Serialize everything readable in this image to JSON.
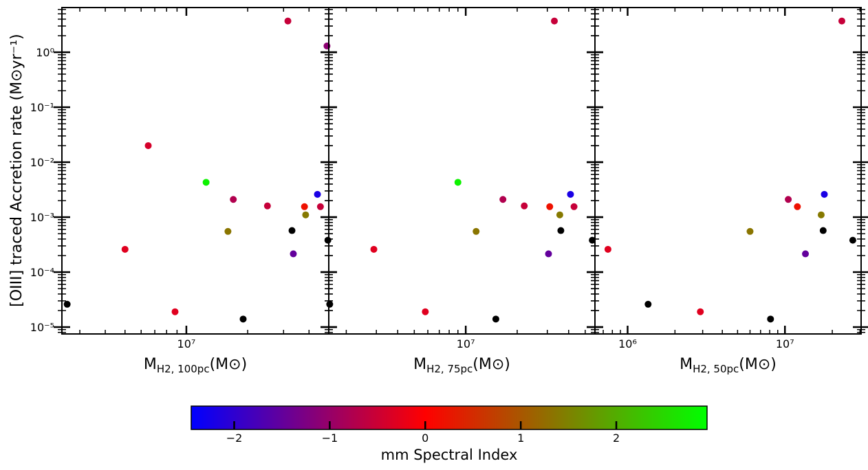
{
  "chart_data": {
    "type": "scatter",
    "shared_ylabel": "[OIII] traced Accretion rate (M⊙yr⁻¹)",
    "y_scale": "log",
    "ylim": [
      7.5e-06,
      6.5
    ],
    "y_tick_labels": [
      "10⁻⁵",
      "10⁻⁴",
      "10⁻³",
      "10⁻²",
      "10⁻¹",
      "10⁰"
    ],
    "y_tick_values": [
      1e-05,
      0.0001,
      0.001,
      0.01,
      0.1,
      1
    ],
    "colorbar": {
      "label": "mm Spectral Index",
      "range": [
        -2.45,
        2.95
      ],
      "ticks": [
        -2,
        -1,
        0,
        1,
        2
      ],
      "tick_labels": [
        "−2",
        "−1",
        "0",
        "1",
        "2"
      ],
      "colors": [
        "#0000ff",
        "#ff0000",
        "#00ff00"
      ],
      "no_data_color": "#000000"
    },
    "panels": [
      {
        "xlabel_main": "M",
        "xlabel_sub": "H2, 100pc",
        "xlabel_tail": "(M⊙)",
        "x_scale": "log",
        "xlim": [
          2450000.0,
          50000000.0
        ],
        "x_tick_labels": [
          "10⁷"
        ],
        "x_tick_values": [
          10000000.0
        ],
        "points": [
          {
            "x": 2600000.0,
            "y": 2.6e-05,
            "alpha": null
          },
          {
            "x": 5000000.0,
            "y": 0.00026,
            "alpha": -0.3
          },
          {
            "x": 6500000.0,
            "y": 0.02,
            "alpha": -0.4
          },
          {
            "x": 8800000.0,
            "y": 1.9e-05,
            "alpha": -0.3
          },
          {
            "x": 12500000.0,
            "y": 0.0043,
            "alpha": 2.8
          },
          {
            "x": 16000000.0,
            "y": 0.00055,
            "alpha": 1.35
          },
          {
            "x": 17000000.0,
            "y": 0.0021,
            "alpha": -0.75
          },
          {
            "x": 19000000.0,
            "y": 1.4e-05,
            "alpha": null
          },
          {
            "x": 25000000.0,
            "y": 0.0016,
            "alpha": -0.55
          },
          {
            "x": 31500000.0,
            "y": 3.7,
            "alpha": -0.55
          },
          {
            "x": 33000000.0,
            "y": 0.00057,
            "alpha": null
          },
          {
            "x": 33500000.0,
            "y": 0.000215,
            "alpha": -1.5
          },
          {
            "x": 38000000.0,
            "y": 0.00155,
            "alpha": 0.2
          },
          {
            "x": 38500000.0,
            "y": 0.0011,
            "alpha": 1.4
          },
          {
            "x": 44000000.0,
            "y": 0.0026,
            "alpha": -2.2
          },
          {
            "x": 45500000.0,
            "y": 0.00155,
            "alpha": -0.55
          },
          {
            "x": 49000000.0,
            "y": 1.3,
            "alpha": -1.1
          },
          {
            "x": 49500000.0,
            "y": 0.00038,
            "alpha": null
          }
        ]
      },
      {
        "xlabel_main": "M",
        "xlabel_sub": "H2, 75pc",
        "xlabel_tail": "(M⊙)",
        "x_scale": "log",
        "xlim": [
          1580000.0,
          57000000.0
        ],
        "x_tick_labels": [
          "10⁷"
        ],
        "x_tick_values": [
          10000000.0
        ],
        "points": [
          {
            "x": 1600000.0,
            "y": 2.6e-05,
            "alpha": null
          },
          {
            "x": 2900000.0,
            "y": 0.00026,
            "alpha": -0.3
          },
          {
            "x": 5800000.0,
            "y": 1.9e-05,
            "alpha": -0.3
          },
          {
            "x": 9000000.0,
            "y": 0.0043,
            "alpha": 2.8
          },
          {
            "x": 11500000.0,
            "y": 0.00055,
            "alpha": 1.35
          },
          {
            "x": 15000000.0,
            "y": 1.4e-05,
            "alpha": null
          },
          {
            "x": 16500000.0,
            "y": 0.0021,
            "alpha": -0.75
          },
          {
            "x": 22000000.0,
            "y": 0.0016,
            "alpha": -0.55
          },
          {
            "x": 30500000.0,
            "y": 0.000215,
            "alpha": -1.5
          },
          {
            "x": 31000000.0,
            "y": 0.00155,
            "alpha": 0.2
          },
          {
            "x": 33000000.0,
            "y": 3.7,
            "alpha": -0.55
          },
          {
            "x": 35500000.0,
            "y": 0.0011,
            "alpha": 1.4
          },
          {
            "x": 36000000.0,
            "y": 0.00057,
            "alpha": null
          },
          {
            "x": 41000000.0,
            "y": 0.0026,
            "alpha": -2.2
          },
          {
            "x": 43000000.0,
            "y": 0.00155,
            "alpha": -0.55
          },
          {
            "x": 55000000.0,
            "y": 0.00038,
            "alpha": null
          }
        ]
      },
      {
        "xlabel_main": "M",
        "xlabel_sub": "H2, 50pc",
        "xlabel_tail": "(M⊙)",
        "x_scale": "log",
        "xlim": [
          620000.0,
          30500000.0
        ],
        "x_tick_labels": [
          "10⁶",
          "10⁷"
        ],
        "x_tick_values": [
          1000000.0,
          10000000.0
        ],
        "points": [
          {
            "x": 750000.0,
            "y": 0.00026,
            "alpha": -0.3
          },
          {
            "x": 1350000.0,
            "y": 2.6e-05,
            "alpha": null
          },
          {
            "x": 2900000.0,
            "y": 1.9e-05,
            "alpha": -0.3
          },
          {
            "x": 6000000.0,
            "y": 0.00055,
            "alpha": 1.35
          },
          {
            "x": 8100000.0,
            "y": 1.4e-05,
            "alpha": null
          },
          {
            "x": 10500000.0,
            "y": 0.0021,
            "alpha": -0.75
          },
          {
            "x": 12000000.0,
            "y": 0.00155,
            "alpha": 0.2
          },
          {
            "x": 13500000.0,
            "y": 0.000215,
            "alpha": -1.5
          },
          {
            "x": 17000000.0,
            "y": 0.0011,
            "alpha": 1.4
          },
          {
            "x": 17500000.0,
            "y": 0.00057,
            "alpha": null
          },
          {
            "x": 17800000.0,
            "y": 0.0026,
            "alpha": -2.2
          },
          {
            "x": 23000000.0,
            "y": 3.7,
            "alpha": -0.55
          },
          {
            "x": 27000000.0,
            "y": 0.00038,
            "alpha": null
          }
        ]
      }
    ]
  }
}
